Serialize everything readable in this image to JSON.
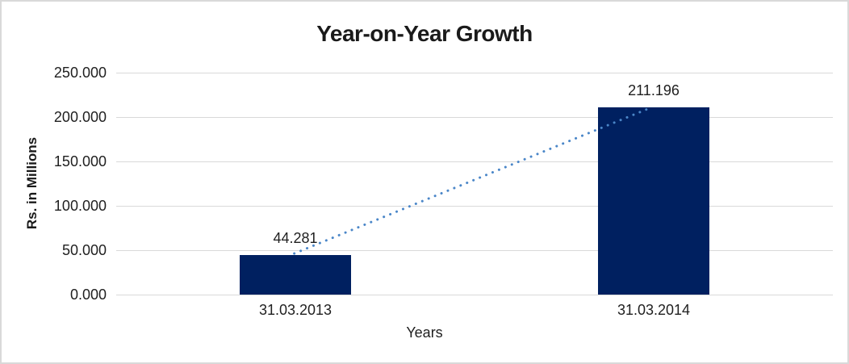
{
  "chart_data": {
    "type": "bar",
    "title": "Year-on-Year Growth",
    "xlabel": "Years",
    "ylabel": "Rs. in Millions",
    "categories": [
      "31.03.2013",
      "31.03.2014"
    ],
    "values": [
      44.281,
      211.196
    ],
    "value_labels": [
      "44.281",
      "211.196"
    ],
    "ylim": [
      0,
      250
    ],
    "ytick_step": 50,
    "ytick_labels": [
      "0.000",
      "50.000",
      "100.000",
      "150.000",
      "200.000",
      "250.000"
    ],
    "grid": true,
    "legend": false,
    "colors": {
      "bar": "#002060",
      "trendline": "#4a86c8",
      "gridline": "#d9d9d9",
      "frame_border": "#d9d9d9",
      "text": "#1f1f1f"
    },
    "trendline": {
      "style": "dotted",
      "from_value": 44.281,
      "to_value": 211.196
    }
  }
}
